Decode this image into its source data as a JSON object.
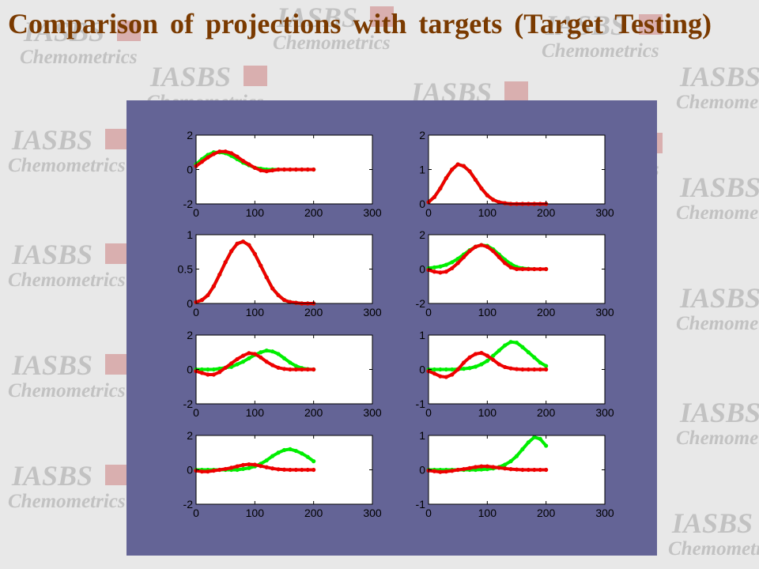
{
  "slide": {
    "title": "Comparison of projections with targets (Target Testing)",
    "watermark": {
      "line1": "IASBS",
      "line2": "Chemometrics"
    },
    "colors": {
      "background": "#e8e8e8",
      "title": "#7a3a00",
      "panel": "#646496",
      "watermark_text": "#c2c2c2",
      "watermark_logo": "#cc8080",
      "target_series": "#00ee00",
      "projection_series": "#ee0000"
    }
  },
  "chart_data": [
    {
      "type": "line",
      "xlim": [
        0,
        300
      ],
      "ylim": [
        -2,
        2
      ],
      "xticks": [
        0,
        100,
        200,
        300
      ],
      "yticks": [
        -2,
        0,
        2
      ],
      "series": [
        {
          "color": "#00ee00",
          "x": [
            0,
            10,
            20,
            30,
            40,
            50,
            60,
            70,
            80,
            90,
            100,
            110,
            120,
            130,
            140,
            150,
            160,
            170,
            180,
            190,
            200
          ],
          "y": [
            0.3,
            0.6,
            0.85,
            1.0,
            1.0,
            0.95,
            0.8,
            0.6,
            0.4,
            0.25,
            0.1,
            0.05,
            0,
            0,
            0,
            0,
            0,
            0,
            0,
            0,
            0
          ]
        },
        {
          "color": "#ee0000",
          "x": [
            0,
            10,
            20,
            30,
            40,
            50,
            60,
            70,
            80,
            90,
            100,
            110,
            120,
            130,
            140,
            150,
            160,
            170,
            180,
            190,
            200
          ],
          "y": [
            0.2,
            0.45,
            0.7,
            0.9,
            1.05,
            1.05,
            0.95,
            0.75,
            0.5,
            0.3,
            0.1,
            -0.05,
            -0.1,
            -0.05,
            0,
            0,
            0,
            0,
            0,
            0,
            0
          ]
        }
      ]
    },
    {
      "type": "line",
      "xlim": [
        0,
        300
      ],
      "ylim": [
        0,
        2
      ],
      "xticks": [
        0,
        100,
        200,
        300
      ],
      "yticks": [
        0,
        1,
        2
      ],
      "series": [
        {
          "color": "#00ee00",
          "x": [
            0,
            10,
            20,
            30,
            40,
            50,
            60,
            70,
            80,
            90,
            100,
            110,
            120,
            130,
            140,
            150,
            160,
            170,
            180,
            190,
            200
          ],
          "y": [
            0.05,
            0.2,
            0.45,
            0.75,
            1.0,
            1.15,
            1.1,
            0.95,
            0.7,
            0.45,
            0.25,
            0.12,
            0.05,
            0.02,
            0,
            0,
            0,
            0,
            0,
            0,
            0
          ]
        },
        {
          "color": "#ee0000",
          "x": [
            0,
            10,
            20,
            30,
            40,
            50,
            60,
            70,
            80,
            90,
            100,
            110,
            120,
            130,
            140,
            150,
            160,
            170,
            180,
            190,
            200
          ],
          "y": [
            0.05,
            0.2,
            0.45,
            0.75,
            1.0,
            1.15,
            1.1,
            0.95,
            0.7,
            0.45,
            0.25,
            0.12,
            0.05,
            0.02,
            0,
            0,
            0,
            0,
            0,
            0,
            0
          ]
        }
      ]
    },
    {
      "type": "line",
      "xlim": [
        0,
        300
      ],
      "ylim": [
        0,
        1
      ],
      "xticks": [
        0,
        100,
        200,
        300
      ],
      "yticks": [
        0,
        0.5,
        1
      ],
      "series": [
        {
          "color": "#00ee00",
          "x": [
            0,
            10,
            20,
            30,
            40,
            50,
            60,
            70,
            80,
            90,
            100,
            110,
            120,
            130,
            140,
            150,
            160,
            170,
            180,
            190,
            200
          ],
          "y": [
            0.02,
            0.05,
            0.12,
            0.25,
            0.42,
            0.6,
            0.76,
            0.87,
            0.9,
            0.85,
            0.72,
            0.55,
            0.38,
            0.22,
            0.12,
            0.05,
            0.02,
            0.01,
            0,
            0,
            0
          ]
        },
        {
          "color": "#ee0000",
          "x": [
            0,
            10,
            20,
            30,
            40,
            50,
            60,
            70,
            80,
            90,
            100,
            110,
            120,
            130,
            140,
            150,
            160,
            170,
            180,
            190,
            200
          ],
          "y": [
            0.02,
            0.05,
            0.12,
            0.25,
            0.42,
            0.6,
            0.76,
            0.87,
            0.9,
            0.85,
            0.72,
            0.55,
            0.38,
            0.22,
            0.12,
            0.05,
            0.02,
            0.01,
            0,
            0,
            0
          ]
        }
      ]
    },
    {
      "type": "line",
      "xlim": [
        0,
        300
      ],
      "ylim": [
        -2,
        2
      ],
      "xticks": [
        0,
        100,
        200,
        300
      ],
      "yticks": [
        -2,
        0,
        2
      ],
      "series": [
        {
          "color": "#00ee00",
          "x": [
            0,
            10,
            20,
            30,
            40,
            50,
            60,
            70,
            80,
            90,
            100,
            110,
            120,
            130,
            140,
            150,
            160,
            170,
            180,
            190,
            200
          ],
          "y": [
            0.05,
            0.1,
            0.15,
            0.25,
            0.4,
            0.6,
            0.85,
            1.1,
            1.3,
            1.4,
            1.35,
            1.15,
            0.85,
            0.55,
            0.3,
            0.12,
            0.05,
            0.02,
            0,
            0,
            0
          ]
        },
        {
          "color": "#ee0000",
          "x": [
            0,
            10,
            20,
            30,
            40,
            50,
            60,
            70,
            80,
            90,
            100,
            110,
            120,
            130,
            140,
            150,
            160,
            170,
            180,
            190,
            200
          ],
          "y": [
            -0.05,
            -0.15,
            -0.2,
            -0.15,
            0.05,
            0.35,
            0.7,
            1.05,
            1.3,
            1.4,
            1.3,
            1.05,
            0.7,
            0.35,
            0.1,
            0,
            0,
            0,
            0,
            0,
            0
          ]
        }
      ]
    },
    {
      "type": "line",
      "xlim": [
        0,
        300
      ],
      "ylim": [
        -2,
        2
      ],
      "xticks": [
        0,
        100,
        200,
        300
      ],
      "yticks": [
        -2,
        0,
        2
      ],
      "series": [
        {
          "color": "#00ee00",
          "x": [
            0,
            10,
            20,
            30,
            40,
            50,
            60,
            70,
            80,
            90,
            100,
            110,
            120,
            130,
            140,
            150,
            160,
            170,
            180,
            190,
            200
          ],
          "y": [
            0,
            0,
            0,
            0,
            0.05,
            0.1,
            0.15,
            0.3,
            0.45,
            0.65,
            0.85,
            1.0,
            1.1,
            1.05,
            0.9,
            0.65,
            0.4,
            0.2,
            0.08,
            0.02,
            0
          ]
        },
        {
          "color": "#ee0000",
          "x": [
            0,
            10,
            20,
            30,
            40,
            50,
            60,
            70,
            80,
            90,
            100,
            110,
            120,
            130,
            140,
            150,
            160,
            170,
            180,
            190,
            200
          ],
          "y": [
            -0.1,
            -0.2,
            -0.3,
            -0.3,
            -0.15,
            0.1,
            0.35,
            0.6,
            0.8,
            0.95,
            0.9,
            0.7,
            0.45,
            0.25,
            0.1,
            0.03,
            0,
            0,
            0,
            0,
            0
          ]
        }
      ]
    },
    {
      "type": "line",
      "xlim": [
        0,
        300
      ],
      "ylim": [
        -1,
        1
      ],
      "xticks": [
        0,
        100,
        200,
        300
      ],
      "yticks": [
        -1,
        0,
        1
      ],
      "series": [
        {
          "color": "#00ee00",
          "x": [
            0,
            10,
            20,
            30,
            40,
            50,
            60,
            70,
            80,
            90,
            100,
            110,
            120,
            130,
            140,
            150,
            160,
            170,
            180,
            190,
            200
          ],
          "y": [
            0,
            0,
            0,
            0,
            0,
            0.01,
            0.02,
            0.04,
            0.08,
            0.15,
            0.25,
            0.4,
            0.55,
            0.7,
            0.8,
            0.78,
            0.65,
            0.5,
            0.35,
            0.2,
            0.1
          ]
        },
        {
          "color": "#ee0000",
          "x": [
            0,
            10,
            20,
            30,
            40,
            50,
            60,
            70,
            80,
            90,
            100,
            110,
            120,
            130,
            140,
            150,
            160,
            170,
            180,
            190,
            200
          ],
          "y": [
            -0.05,
            -0.12,
            -0.2,
            -0.22,
            -0.15,
            0,
            0.2,
            0.35,
            0.45,
            0.48,
            0.4,
            0.28,
            0.15,
            0.07,
            0.03,
            0.01,
            0,
            0,
            0,
            0,
            0
          ]
        }
      ]
    },
    {
      "type": "line",
      "xlim": [
        0,
        300
      ],
      "ylim": [
        -2,
        2
      ],
      "xticks": [
        0,
        100,
        200,
        300
      ],
      "yticks": [
        -2,
        0,
        2
      ],
      "series": [
        {
          "color": "#00ee00",
          "x": [
            0,
            10,
            20,
            30,
            40,
            50,
            60,
            70,
            80,
            90,
            100,
            110,
            120,
            130,
            140,
            150,
            160,
            170,
            180,
            190,
            200
          ],
          "y": [
            0,
            0,
            0,
            0,
            0,
            0,
            0,
            0,
            0.05,
            0.1,
            0.2,
            0.35,
            0.55,
            0.8,
            1.0,
            1.15,
            1.2,
            1.1,
            0.95,
            0.75,
            0.5
          ]
        },
        {
          "color": "#ee0000",
          "x": [
            0,
            10,
            20,
            30,
            40,
            50,
            60,
            70,
            80,
            90,
            100,
            110,
            120,
            130,
            140,
            150,
            160,
            170,
            180,
            190,
            200
          ],
          "y": [
            -0.05,
            -0.1,
            -0.1,
            -0.05,
            0,
            0.05,
            0.12,
            0.2,
            0.28,
            0.32,
            0.3,
            0.22,
            0.15,
            0.08,
            0.03,
            0.01,
            0,
            0,
            0,
            0,
            0
          ]
        }
      ]
    },
    {
      "type": "line",
      "xlim": [
        0,
        300
      ],
      "ylim": [
        -1,
        1
      ],
      "xticks": [
        0,
        100,
        200,
        300
      ],
      "yticks": [
        -1,
        0,
        1
      ],
      "series": [
        {
          "color": "#00ee00",
          "x": [
            0,
            10,
            20,
            30,
            40,
            50,
            60,
            70,
            80,
            90,
            100,
            110,
            120,
            130,
            140,
            150,
            160,
            170,
            180,
            190,
            200
          ],
          "y": [
            0,
            0,
            0,
            0,
            0,
            0,
            0,
            0,
            0,
            0.01,
            0.02,
            0.04,
            0.08,
            0.15,
            0.25,
            0.4,
            0.6,
            0.8,
            0.95,
            0.9,
            0.7
          ]
        },
        {
          "color": "#ee0000",
          "x": [
            0,
            10,
            20,
            30,
            40,
            50,
            60,
            70,
            80,
            90,
            100,
            110,
            120,
            130,
            140,
            150,
            160,
            170,
            180,
            190,
            200
          ],
          "y": [
            -0.02,
            -0.04,
            -0.06,
            -0.05,
            -0.03,
            0,
            0.02,
            0.05,
            0.08,
            0.1,
            0.1,
            0.08,
            0.06,
            0.04,
            0.02,
            0.01,
            0,
            0,
            0,
            0,
            0
          ]
        }
      ]
    }
  ]
}
